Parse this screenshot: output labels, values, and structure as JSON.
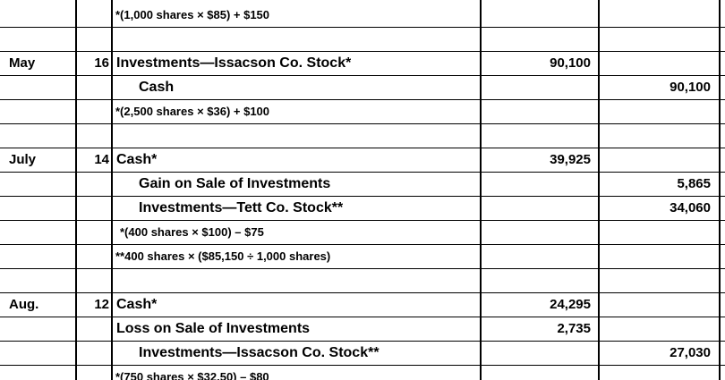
{
  "rows": [
    {
      "note": "*(1,000 shares × $85) + $150"
    },
    {},
    {
      "month": "May",
      "day": "16",
      "account": "Investments—Issacson  Co. Stock*",
      "debit": "90,100"
    },
    {
      "account": "Cash",
      "credit": "90,100"
    },
    {
      "note": "*(2,500 shares × $36) + $100"
    },
    {},
    {
      "month": "July",
      "day": "14",
      "account": "Cash*",
      "debit": "39,925"
    },
    {
      "account": "Gain on Sale of Investments",
      "credit": "5,865"
    },
    {
      "account": "Investments—Tett Co. Stock**",
      "credit": "34,060"
    },
    {
      "note": "*(400 shares × $100) – $75"
    },
    {
      "note": "**400 shares × ($85,150 ÷ 1,000 shares)"
    },
    {},
    {
      "month": "Aug.",
      "day": "12",
      "account": "Cash*",
      "debit": "24,295"
    },
    {
      "account": "Loss on Sale of Investments",
      "debit": "2,735"
    },
    {
      "account": "Investments—Issacson  Co. Stock**",
      "credit": "27,030"
    },
    {
      "note": "*(750 shares × $32.50) – $80"
    }
  ]
}
